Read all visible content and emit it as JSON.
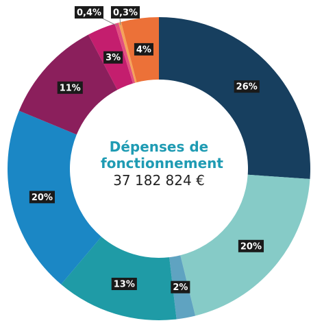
{
  "chart_data": {
    "type": "donut",
    "title": "Dépenses de fonctionnement",
    "subtitle": "37 182 824 €",
    "categories": [
      null,
      null,
      null,
      null,
      null,
      null,
      null,
      null,
      null,
      null
    ],
    "values": [
      26,
      20,
      2,
      13,
      20,
      11,
      3,
      0.4,
      0.3,
      4
    ],
    "value_labels": [
      "26%",
      "20%",
      "2%",
      "13%",
      "20%",
      "11%",
      "3%",
      "0,4%",
      "0,3%",
      "4%"
    ],
    "colors": [
      "#173f5f",
      "#86cbc7",
      "#5fa3c1",
      "#1f9ba6",
      "#1b87c5",
      "#8b1f5c",
      "#c41e6e",
      "#e2507f",
      "#f5a35a",
      "#ec7138"
    ]
  }
}
